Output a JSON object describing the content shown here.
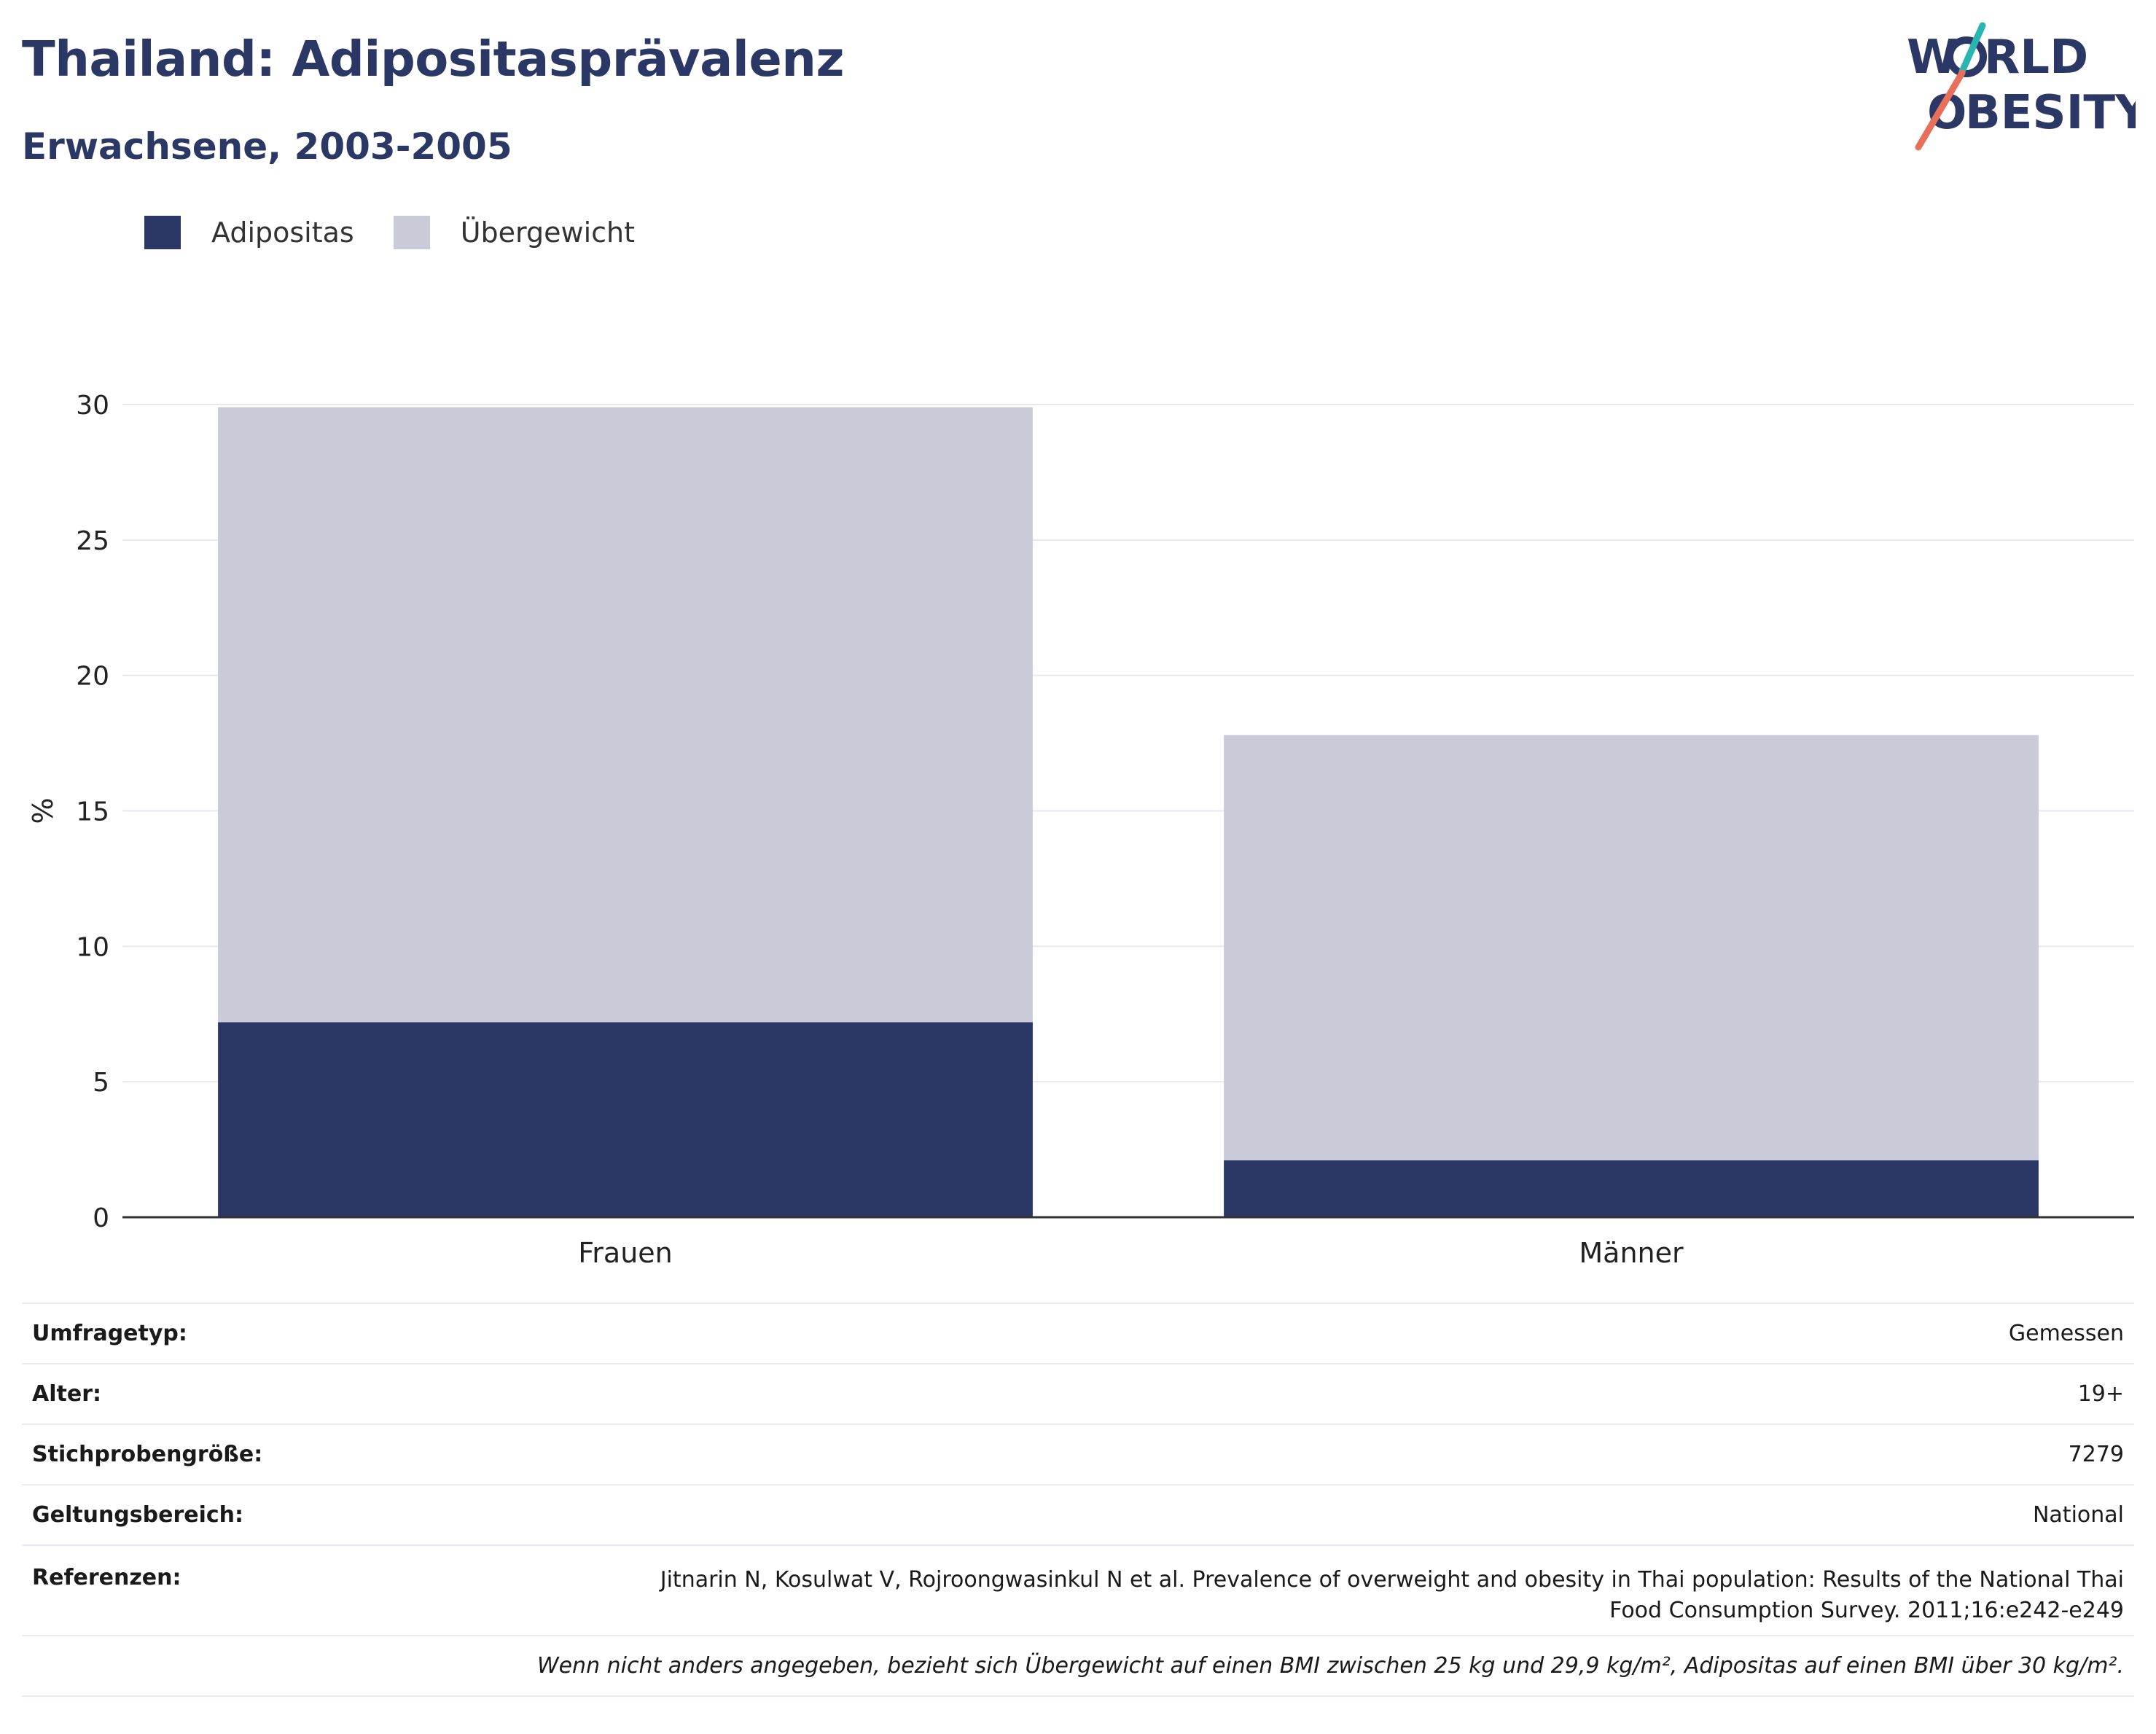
{
  "header": {
    "title": "Thailand: Adipositasprävalenz",
    "subtitle": "Erwachsene, 2003-2005"
  },
  "logo": {
    "line1_w": "W",
    "line1_rest": "RLD",
    "line2_first": "O",
    "line2_rest": "BESITY",
    "colors": {
      "text": "#2b3765",
      "slash_teal": "#2bb5b0",
      "slash_coral": "#e8705a"
    }
  },
  "legend": {
    "items": [
      {
        "label": "Adipositas",
        "color": "#2b3765"
      },
      {
        "label": "Übergewicht",
        "color": "#c9ccd8"
      }
    ]
  },
  "chart_data": {
    "type": "bar",
    "stacked": true,
    "categories": [
      "Frauen",
      "Männer"
    ],
    "series": [
      {
        "name": "Adipositas",
        "values": [
          7.2,
          2.1
        ],
        "color": "#2b3765"
      },
      {
        "name": "Übergewicht",
        "values": [
          22.7,
          15.7
        ],
        "color": "#c9ccd8"
      }
    ],
    "ylabel": "%",
    "ylim": [
      0,
      30
    ],
    "yticks": [
      0,
      5,
      10,
      15,
      20,
      25,
      30
    ],
    "grid": true,
    "legend_position": "top-left"
  },
  "info": {
    "rows": [
      {
        "label": "Umfragetyp:",
        "value": "Gemessen"
      },
      {
        "label": "Alter:",
        "value": "19+"
      },
      {
        "label": "Stichprobengröße:",
        "value": "7279"
      },
      {
        "label": "Geltungsbereich:",
        "value": "National"
      }
    ],
    "references": {
      "label": "Referenzen:",
      "line1": "Jitnarin N, Kosulwat V, Rojroongwasinkul N et al. Prevalence of overweight and obesity in Thai population: Results of the National Thai",
      "line2": "Food Consumption Survey. 2011;16:e242-e249"
    },
    "note": "Wenn nicht anders angegeben, bezieht sich Übergewicht auf einen BMI zwischen 25 kg und 29,9 kg/m², Adipositas auf einen BMI über 30 kg/m²."
  }
}
